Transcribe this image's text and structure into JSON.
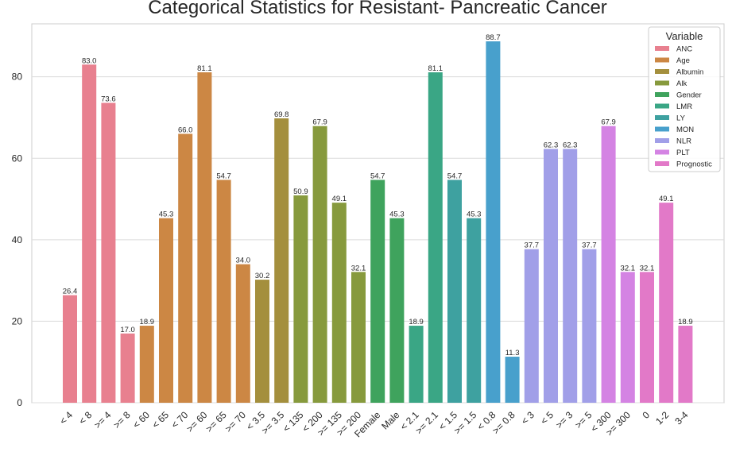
{
  "chart_data": {
    "type": "bar",
    "title": "Categorical Statistics for Resistant- Pancreatic Cancer",
    "xlabel": "",
    "ylabel": "",
    "ylim": [
      0,
      93
    ],
    "yticks": [
      0,
      20,
      40,
      60,
      80
    ],
    "grid": true,
    "legend": {
      "title": "Variable",
      "placement": "top-right"
    },
    "series": [
      {
        "name": "ANC",
        "color": "#e8808f"
      },
      {
        "name": "Age",
        "color": "#cc8744"
      },
      {
        "name": "Albumin",
        "color": "#a48f3d"
      },
      {
        "name": "Alk",
        "color": "#879a3d"
      },
      {
        "name": "Gender",
        "color": "#3fa35d"
      },
      {
        "name": "LMR",
        "color": "#3aa685"
      },
      {
        "name": "LY",
        "color": "#3ea1a0"
      },
      {
        "name": "MON",
        "color": "#48a0cc"
      },
      {
        "name": "NLR",
        "color": "#a19fe8"
      },
      {
        "name": "PLT",
        "color": "#d483e3"
      },
      {
        "name": "Prognostic",
        "color": "#e279c8"
      }
    ],
    "bars": [
      {
        "category": "< 4",
        "series": 0,
        "value": 26.4,
        "label": "26.4"
      },
      {
        "category": "< 8",
        "series": 0,
        "value": 83.0,
        "label": "83.0"
      },
      {
        "category": ">= 4",
        "series": 0,
        "value": 73.6,
        "label": "73.6"
      },
      {
        "category": ">= 8",
        "series": 0,
        "value": 17.0,
        "label": "17.0"
      },
      {
        "category": "< 60",
        "series": 1,
        "value": 18.9,
        "label": "18.9"
      },
      {
        "category": "< 65",
        "series": 1,
        "value": 45.3,
        "label": "45.3"
      },
      {
        "category": "< 70",
        "series": 1,
        "value": 66.0,
        "label": "66.0"
      },
      {
        "category": ">= 60",
        "series": 1,
        "value": 81.1,
        "label": "81.1"
      },
      {
        "category": ">= 65",
        "series": 1,
        "value": 54.7,
        "label": "54.7"
      },
      {
        "category": ">= 70",
        "series": 1,
        "value": 34.0,
        "label": "34.0"
      },
      {
        "category": "< 3.5",
        "series": 2,
        "value": 30.2,
        "label": "30.2"
      },
      {
        "category": ">= 3.5",
        "series": 2,
        "value": 69.8,
        "label": "69.8"
      },
      {
        "category": "< 135",
        "series": 3,
        "value": 50.9,
        "label": "50.9"
      },
      {
        "category": "< 200",
        "series": 3,
        "value": 67.9,
        "label": "67.9"
      },
      {
        "category": ">= 135",
        "series": 3,
        "value": 49.1,
        "label": "49.1"
      },
      {
        "category": ">= 200",
        "series": 3,
        "value": 32.1,
        "label": "32.1"
      },
      {
        "category": "Female",
        "series": 4,
        "value": 54.7,
        "label": "54.7"
      },
      {
        "category": "Male",
        "series": 4,
        "value": 45.3,
        "label": "45.3"
      },
      {
        "category": "< 2.1",
        "series": 5,
        "value": 18.9,
        "label": "18.9"
      },
      {
        "category": ">= 2.1",
        "series": 5,
        "value": 81.1,
        "label": "81.1"
      },
      {
        "category": "< 1.5",
        "series": 6,
        "value": 54.7,
        "label": "54.7"
      },
      {
        "category": ">= 1.5",
        "series": 6,
        "value": 45.3,
        "label": "45.3"
      },
      {
        "category": "< 0.8",
        "series": 7,
        "value": 88.7,
        "label": "88.7"
      },
      {
        "category": ">= 0.8",
        "series": 7,
        "value": 11.3,
        "label": "11.3"
      },
      {
        "category": "< 3",
        "series": 8,
        "value": 37.7,
        "label": "37.7"
      },
      {
        "category": "< 5",
        "series": 8,
        "value": 62.3,
        "label": "62.3"
      },
      {
        "category": ">= 3",
        "series": 8,
        "value": 62.3,
        "label": "62.3"
      },
      {
        "category": ">= 5",
        "series": 8,
        "value": 37.7,
        "label": "37.7"
      },
      {
        "category": "< 300",
        "series": 9,
        "value": 67.9,
        "label": "67.9"
      },
      {
        "category": ">= 300",
        "series": 9,
        "value": 32.1,
        "label": "32.1"
      },
      {
        "category": "0",
        "series": 10,
        "value": 32.1,
        "label": "32.1"
      },
      {
        "category": "1-2",
        "series": 10,
        "value": 49.1,
        "label": "49.1"
      },
      {
        "category": "3-4",
        "series": 10,
        "value": 18.9,
        "label": "18.9"
      }
    ]
  }
}
